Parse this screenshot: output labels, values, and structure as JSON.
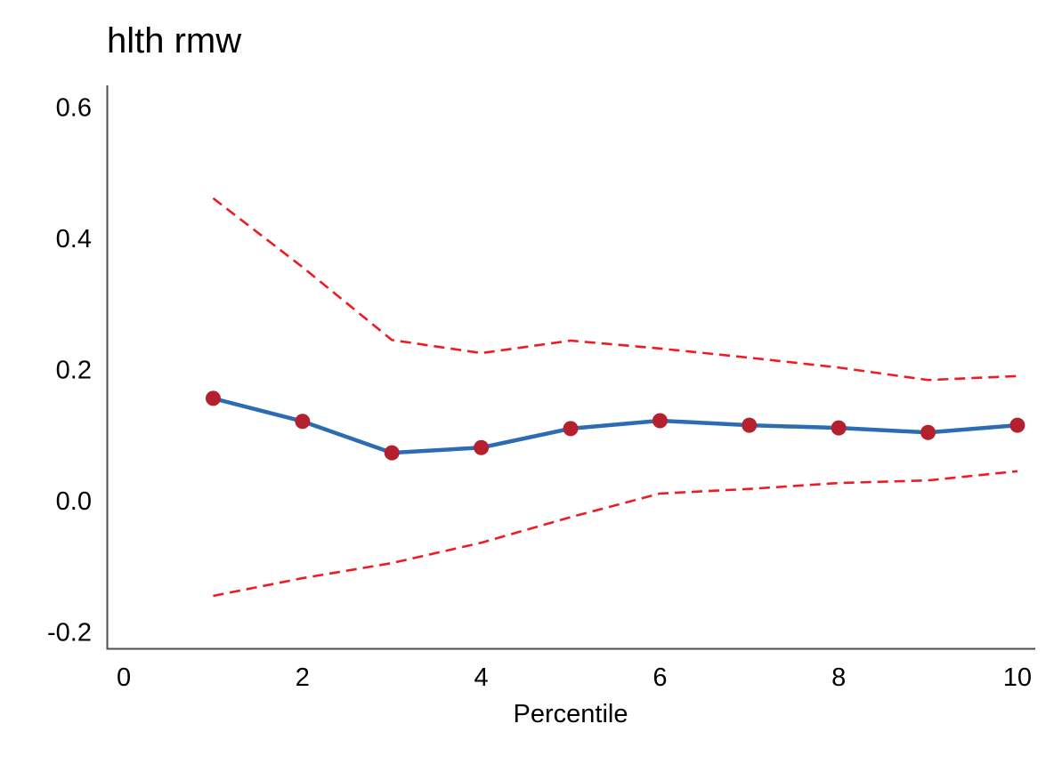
{
  "chart_data": {
    "type": "line",
    "title": "hlth rmw",
    "xlabel": "Percentile",
    "ylabel": "",
    "grid": false,
    "legend": "none",
    "x": [
      1,
      2,
      3,
      4,
      5,
      6,
      7,
      8,
      9,
      10
    ],
    "series": [
      {
        "name": "upper_confidence_bound",
        "style": "dashed",
        "color": "#ed1c24",
        "values": [
          0.461,
          0.356,
          0.245,
          0.225,
          0.244,
          0.232,
          0.218,
          0.203,
          0.184,
          0.19
        ]
      },
      {
        "name": "lower_confidence_bound",
        "style": "dashed",
        "color": "#ed1c24",
        "values": [
          -0.145,
          -0.118,
          -0.095,
          -0.064,
          -0.025,
          0.011,
          0.018,
          0.027,
          0.031,
          0.045
        ]
      },
      {
        "name": "point_estimate",
        "style": "solid_with_markers",
        "color": "#2b6cb3",
        "marker": "circle",
        "marker_color": "#b5202f",
        "values": [
          0.156,
          0.121,
          0.073,
          0.081,
          0.11,
          0.122,
          0.115,
          0.111,
          0.104,
          0.115
        ]
      }
    ],
    "x_tick_labels": [
      "0",
      "2",
      "4",
      "6",
      "8",
      "10"
    ],
    "x_tick_values": [
      0,
      2,
      4,
      6,
      8,
      10
    ],
    "y_tick_labels": [
      "-0.2",
      "0.0",
      "0.2",
      "0.4",
      "0.6"
    ],
    "y_tick_values": [
      -0.2,
      0.0,
      0.2,
      0.4,
      0.6
    ],
    "xlim": [
      -0.19,
      10.2
    ],
    "ylim": [
      -0.225,
      0.633
    ],
    "axis_color": "#4d4d4d",
    "text_color": "#000000",
    "background_color": "#ffffff"
  }
}
